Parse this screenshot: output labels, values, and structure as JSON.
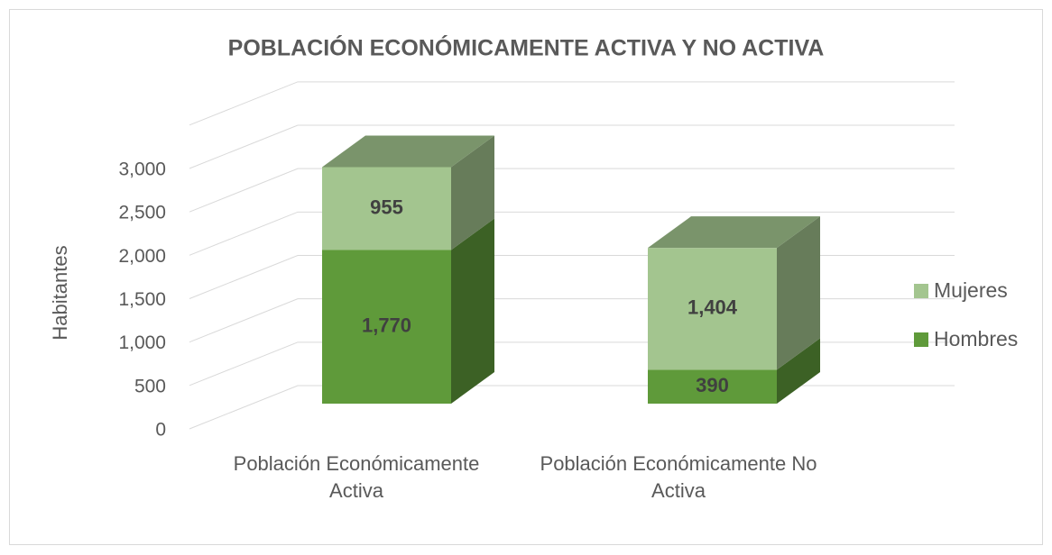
{
  "chart_data": {
    "type": "bar3d_stacked",
    "title": "POBLACIÓN ECONÓMICAMENTE ACTIVA Y NO ACTIVA",
    "y_label": "Habitantes",
    "categories": [
      "Población Económicamente Activa",
      "Población Económicamente No Activa"
    ],
    "series": [
      {
        "name": "Hombres",
        "color": "#5f9a3a",
        "values": [
          1770,
          390
        ],
        "value_labels": [
          "1,770",
          "390"
        ]
      },
      {
        "name": "Mujeres",
        "color": "#a3c58f",
        "values": [
          955,
          1404
        ],
        "value_labels": [
          "955",
          "1,404"
        ]
      }
    ],
    "stacked": true,
    "ylim": [
      0,
      3500
    ],
    "yticks": [
      0,
      {
        "value": 500,
        "label": "500"
      },
      {
        "value": 1000,
        "label": "1,000"
      },
      {
        "value": 1500,
        "label": "1,500"
      },
      {
        "value": 2000,
        "label": "2,000"
      },
      {
        "value": 2500,
        "label": "2,500"
      },
      {
        "value": 3000,
        "label": "3,000"
      }
    ],
    "grid": true,
    "legend": "right"
  }
}
